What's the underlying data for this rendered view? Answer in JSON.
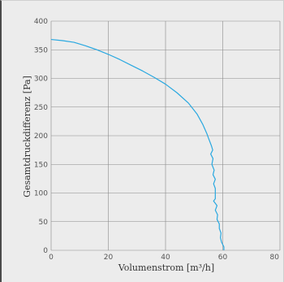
{
  "chart_data": {
    "type": "line",
    "xlabel": "Volumenstrom [m³/h]",
    "ylabel": "Gesamtdruckdifferenz [Pa]",
    "xlim": [
      0,
      80
    ],
    "ylim": [
      0,
      400
    ],
    "x_ticks": [
      "0",
      "20",
      "40",
      "60",
      "80"
    ],
    "y_ticks": [
      "0",
      "50",
      "100",
      "150",
      "200",
      "250",
      "300",
      "350",
      "400"
    ],
    "grid": true,
    "series": [
      {
        "color": "#29a8e0",
        "points": [
          [
            0,
            368
          ],
          [
            4,
            366
          ],
          [
            8,
            363
          ],
          [
            12,
            357
          ],
          [
            16,
            350
          ],
          [
            20,
            342
          ],
          [
            24,
            333
          ],
          [
            28,
            323
          ],
          [
            32,
            313
          ],
          [
            36,
            302
          ],
          [
            40,
            290
          ],
          [
            44,
            275
          ],
          [
            48,
            257
          ],
          [
            51,
            238
          ],
          [
            53,
            220
          ],
          [
            54.5,
            203
          ],
          [
            55,
            196
          ],
          [
            56,
            183
          ],
          [
            56.5,
            175
          ],
          [
            55.8,
            168
          ],
          [
            56.6,
            160
          ],
          [
            56.2,
            150
          ],
          [
            57,
            140
          ],
          [
            56.6,
            132
          ],
          [
            57.4,
            124
          ],
          [
            56.8,
            116
          ],
          [
            57.4,
            108
          ],
          [
            57.4,
            98
          ],
          [
            57.4,
            90
          ],
          [
            56.8,
            86
          ],
          [
            58,
            78
          ],
          [
            57.4,
            70
          ],
          [
            58.2,
            62
          ],
          [
            58,
            54
          ],
          [
            58.8,
            46
          ],
          [
            58.8,
            38
          ],
          [
            59.4,
            30
          ],
          [
            59.2,
            22
          ],
          [
            59.6,
            14
          ],
          [
            60.4,
            6
          ],
          [
            60.4,
            0
          ]
        ]
      }
    ]
  }
}
